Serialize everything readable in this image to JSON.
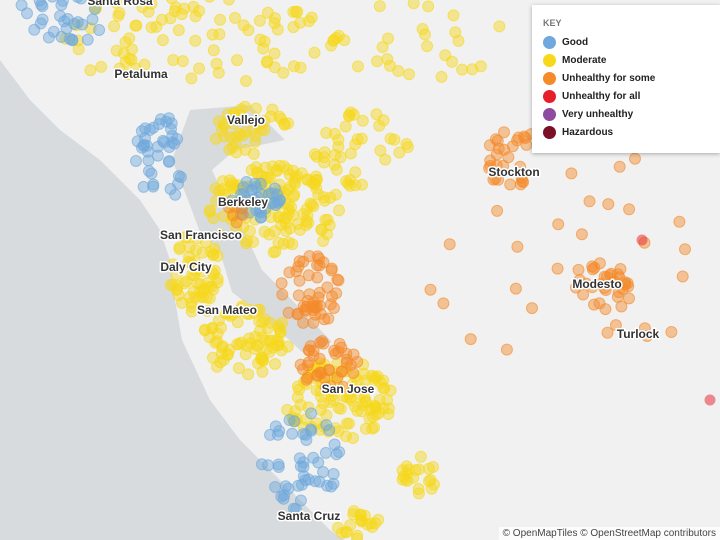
{
  "key": {
    "title": "KEY",
    "items": [
      {
        "label": "Good",
        "color": "#6fa8dc"
      },
      {
        "label": "Moderate",
        "color": "#f7d81b"
      },
      {
        "label": "Unhealthy for some",
        "color": "#f58a2a"
      },
      {
        "label": "Unhealthy for all",
        "color": "#e6202a"
      },
      {
        "label": "Very unhealthy",
        "color": "#8e4a9e"
      },
      {
        "label": "Hazardous",
        "color": "#7a0f26"
      }
    ]
  },
  "cities": [
    "Santa Rosa",
    "Petaluma",
    "Vallejo",
    "Berkeley",
    "Stockton",
    "San Francisco",
    "Daly City",
    "Modesto",
    "San Mateo",
    "Turlock",
    "San Jose",
    "Santa Cruz"
  ],
  "attribution": "© OpenMapTiles © OpenStreetMap contributors"
}
